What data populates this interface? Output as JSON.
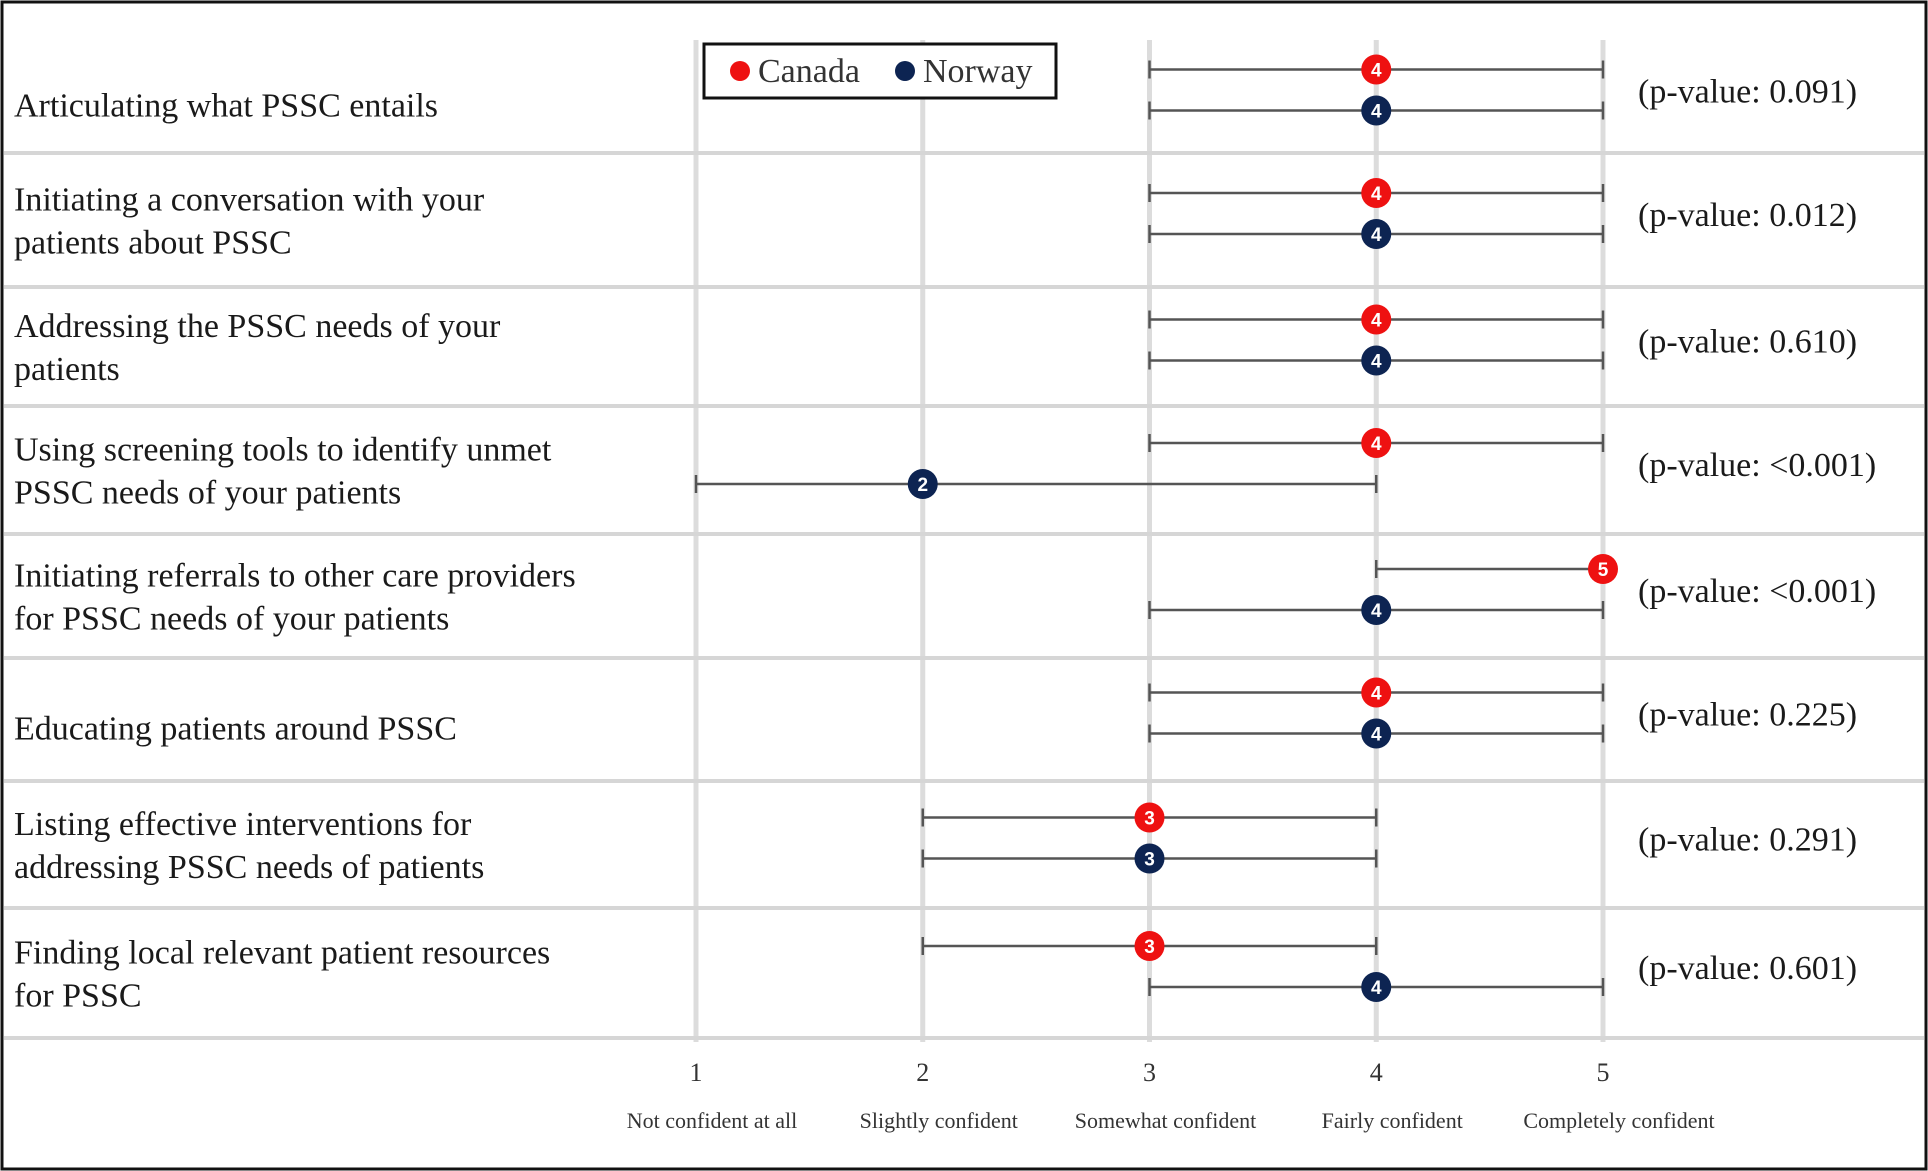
{
  "chart_data": {
    "type": "dot-range",
    "title": "",
    "xlabel": "",
    "ylabel": "",
    "xlim": [
      1,
      5
    ],
    "ticks": [
      {
        "value": 1,
        "label": "1",
        "description": "Not confident at all"
      },
      {
        "value": 2,
        "label": "2",
        "description": "Slightly confident"
      },
      {
        "value": 3,
        "label": "3",
        "description": "Somewhat confident"
      },
      {
        "value": 4,
        "label": "4",
        "description": "Fairly confident"
      },
      {
        "value": 5,
        "label": "5",
        "description": "Completely confident"
      }
    ],
    "legend": {
      "position": "top",
      "entries": [
        {
          "name": "Canada",
          "color": "#ee1111"
        },
        {
          "name": "Norway",
          "color": "#0d2452"
        }
      ]
    },
    "rows": [
      {
        "label_lines": [
          "Articulating what PSSC entails"
        ],
        "p_value": "(p-value: 0.091)",
        "canada": {
          "median": 4,
          "low": 3,
          "high": 5
        },
        "norway": {
          "median": 4,
          "low": 3,
          "high": 5
        }
      },
      {
        "label_lines": [
          "Initiating a conversation with your",
          "patients about PSSC"
        ],
        "p_value": "(p-value: 0.012)",
        "canada": {
          "median": 4,
          "low": 3,
          "high": 5
        },
        "norway": {
          "median": 4,
          "low": 3,
          "high": 5
        }
      },
      {
        "label_lines": [
          "Addressing the PSSC needs of your",
          "patients"
        ],
        "p_value": "(p-value: 0.610)",
        "canada": {
          "median": 4,
          "low": 3,
          "high": 5
        },
        "norway": {
          "median": 4,
          "low": 3,
          "high": 5
        }
      },
      {
        "label_lines": [
          "Using screening tools to identify unmet",
          "PSSC needs of your patients"
        ],
        "p_value": "(p-value: <0.001)",
        "canada": {
          "median": 4,
          "low": 3,
          "high": 5
        },
        "norway": {
          "median": 2,
          "low": 1,
          "high": 4
        }
      },
      {
        "label_lines": [
          "Initiating referrals to other care providers",
          "for PSSC needs of your patients"
        ],
        "p_value": "(p-value: <0.001)",
        "canada": {
          "median": 5,
          "low": 4,
          "high": 5
        },
        "norway": {
          "median": 4,
          "low": 3,
          "high": 5
        }
      },
      {
        "label_lines": [
          "Educating patients around PSSC"
        ],
        "p_value": "(p-value: 0.225)",
        "canada": {
          "median": 4,
          "low": 3,
          "high": 5
        },
        "norway": {
          "median": 4,
          "low": 3,
          "high": 5
        }
      },
      {
        "label_lines": [
          "Listing effective interventions for",
          "addressing PSSC needs of patients"
        ],
        "p_value": "(p-value: 0.291)",
        "canada": {
          "median": 3,
          "low": 2,
          "high": 4
        },
        "norway": {
          "median": 3,
          "low": 2,
          "high": 4
        }
      },
      {
        "label_lines": [
          "Finding local relevant patient resources",
          "for PSSC"
        ],
        "p_value": "(p-value: 0.601)",
        "canada": {
          "median": 3,
          "low": 2,
          "high": 4
        },
        "norway": {
          "median": 4,
          "low": 3,
          "high": 5
        }
      }
    ]
  }
}
